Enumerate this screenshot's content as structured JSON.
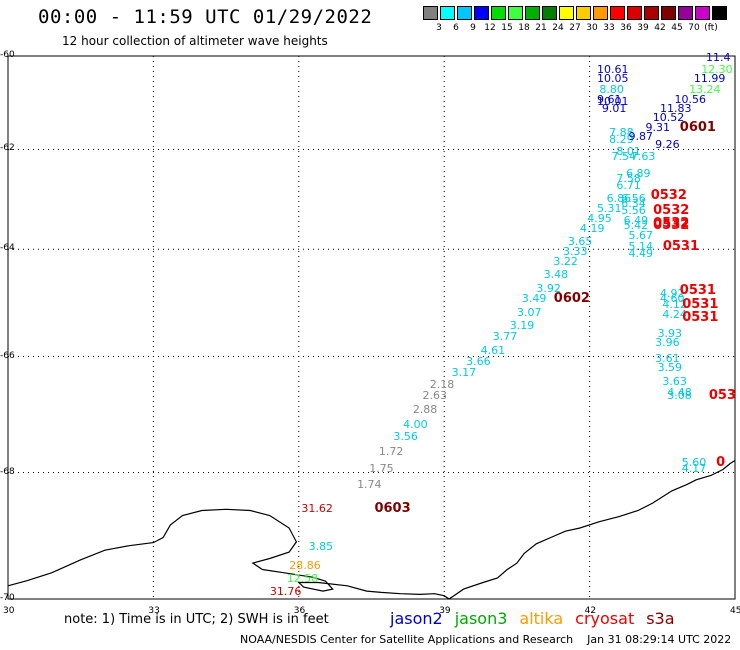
{
  "title": "00:00 - 11:59 UTC 01/29/2022",
  "subtitle": "12 hour collection of altimeter wave heights",
  "colorbar": {
    "colors": [
      "#808080",
      "#00ffff",
      "#00c8ff",
      "#0000ff",
      "#00e000",
      "#40ff40",
      "#00b000",
      "#008000",
      "#ffff00",
      "#ffcc00",
      "#ff9900",
      "#ff0000",
      "#dd0000",
      "#aa0000",
      "#800000",
      "#990099",
      "#cc00cc",
      "#000000"
    ],
    "labels": [
      "3",
      "6",
      "9",
      "12",
      "15",
      "18",
      "21",
      "24",
      "27",
      "30",
      "33",
      "36",
      "39",
      "42",
      "45",
      "70",
      "(ft)"
    ]
  },
  "axes": {
    "lat_labels": [
      "-60",
      "-62",
      "-64",
      "-66",
      "-68",
      "-70"
    ],
    "lon_labels": [
      "30",
      "33",
      "36",
      "39",
      "42",
      "45"
    ]
  },
  "map": {
    "lon_range": [
      30,
      45
    ],
    "lat_range": [
      -70,
      -60
    ],
    "lat_mercator": true
  },
  "observations": [
    {
      "text": "10.61",
      "lon": 42.4,
      "lat": -60.3,
      "color": "#0000cc"
    },
    {
      "text": "10.05",
      "lon": 42.4,
      "lat": -60.5,
      "color": "#0000cc"
    },
    {
      "text": "8.80",
      "lon": 42.45,
      "lat": -60.75,
      "color": "#00ccdd"
    },
    {
      "text": "9.61",
      "lon": 42.4,
      "lat": -60.95,
      "color": "#0000cc"
    },
    {
      "text": "10.01",
      "lon": 42.4,
      "lat": -61.0,
      "color": "#0000cc"
    },
    {
      "text": "9.01",
      "lon": 42.5,
      "lat": -61.15,
      "color": "#0000cc"
    },
    {
      "text": "7.88",
      "lon": 42.65,
      "lat": -61.65,
      "color": "#00ccdd"
    },
    {
      "text": "8.29",
      "lon": 42.65,
      "lat": -61.8,
      "color": "#00ccdd"
    },
    {
      "text": "9.26",
      "lon": 43.6,
      "lat": -61.9,
      "color": "#0000cc"
    },
    {
      "text": "8.01",
      "lon": 42.8,
      "lat": -62.05,
      "color": "#00ccdd"
    },
    {
      "text": "7.54",
      "lon": 42.7,
      "lat": -62.15,
      "color": "#00ccdd"
    },
    {
      "text": "7.63",
      "lon": 43.1,
      "lat": -62.15,
      "color": "#00ccdd"
    },
    {
      "text": "6.89",
      "lon": 43.0,
      "lat": -62.5,
      "color": "#00ccdd"
    },
    {
      "text": "7.58",
      "lon": 42.8,
      "lat": -62.6,
      "color": "#00ccdd"
    },
    {
      "text": "6.71",
      "lon": 42.8,
      "lat": -62.75,
      "color": "#00ccdd"
    },
    {
      "text": "6.86",
      "lon": 42.6,
      "lat": -63.0,
      "color": "#00ccdd"
    },
    {
      "text": "6.56",
      "lon": 42.9,
      "lat": -63.0,
      "color": "#00ccdd"
    },
    {
      "text": "5.31",
      "lon": 42.4,
      "lat": -63.2,
      "color": "#00ccdd"
    },
    {
      "text": "6.34",
      "lon": 42.9,
      "lat": -63.1,
      "color": "#00ccdd"
    },
    {
      "text": "5.56",
      "lon": 42.9,
      "lat": -63.25,
      "color": "#00ccdd"
    },
    {
      "text": "4.95",
      "lon": 42.2,
      "lat": -63.4,
      "color": "#00ccdd"
    },
    {
      "text": "6.49",
      "lon": 42.95,
      "lat": -63.45,
      "color": "#00ccdd"
    },
    {
      "text": "5.42",
      "lon": 42.95,
      "lat": -63.55,
      "color": "#00ccdd"
    },
    {
      "text": "4.19",
      "lon": 42.05,
      "lat": -63.6,
      "color": "#00ccdd"
    },
    {
      "text": "5.67",
      "lon": 43.05,
      "lat": -63.75,
      "color": "#00ccdd"
    },
    {
      "text": "3.65",
      "lon": 41.8,
      "lat": -63.85,
      "color": "#00ccdd"
    },
    {
      "text": "5.14",
      "lon": 43.05,
      "lat": -63.95,
      "color": "#00ccdd"
    },
    {
      "text": "3.33",
      "lon": 41.7,
      "lat": -64.05,
      "color": "#00ccdd"
    },
    {
      "text": "4.49",
      "lon": 43.05,
      "lat": -64.1,
      "color": "#00ccdd"
    },
    {
      "text": "3.22",
      "lon": 41.5,
      "lat": -64.25,
      "color": "#00ccdd"
    },
    {
      "text": "3.48",
      "lon": 41.3,
      "lat": -64.5,
      "color": "#00ccdd"
    },
    {
      "text": "3.92",
      "lon": 41.15,
      "lat": -64.75,
      "color": "#00ccdd"
    },
    {
      "text": "3.49",
      "lon": 40.85,
      "lat": -64.95,
      "color": "#00ccdd"
    },
    {
      "text": "4.92",
      "lon": 43.7,
      "lat": -64.85,
      "color": "#00ccdd"
    },
    {
      "text": "4.60",
      "lon": 43.7,
      "lat": -64.95,
      "color": "#00ccdd"
    },
    {
      "text": "4.12",
      "lon": 43.75,
      "lat": -65.05,
      "color": "#00ccdd"
    },
    {
      "text": "4.24",
      "lon": 43.75,
      "lat": -65.25,
      "color": "#00ccdd"
    },
    {
      "text": "3.07",
      "lon": 40.75,
      "lat": -65.2,
      "color": "#00ccdd"
    },
    {
      "text": "3.19",
      "lon": 40.6,
      "lat": -65.45,
      "color": "#00ccdd"
    },
    {
      "text": "3.93",
      "lon": 43.65,
      "lat": -65.6,
      "color": "#00ccdd"
    },
    {
      "text": "3.77",
      "lon": 40.25,
      "lat": -65.65,
      "color": "#00ccdd"
    },
    {
      "text": "3.96",
      "lon": 43.6,
      "lat": -65.75,
      "color": "#00ccdd"
    },
    {
      "text": "4.61",
      "lon": 40.0,
      "lat": -65.9,
      "color": "#00ccdd"
    },
    {
      "text": "3.66",
      "lon": 39.7,
      "lat": -66.1,
      "color": "#00ccdd"
    },
    {
      "text": "3.61",
      "lon": 43.6,
      "lat": -66.05,
      "color": "#00ccdd"
    },
    {
      "text": "3.59",
      "lon": 43.65,
      "lat": -66.2,
      "color": "#00ccdd"
    },
    {
      "text": "3.17",
      "lon": 39.4,
      "lat": -66.3,
      "color": "#00ccdd"
    },
    {
      "text": "2.18",
      "lon": 38.95,
      "lat": -66.5,
      "color": "#888888"
    },
    {
      "text": "3.63",
      "lon": 43.75,
      "lat": -66.45,
      "color": "#00ccdd"
    },
    {
      "text": "4.48",
      "lon": 43.85,
      "lat": -66.65,
      "color": "#00ccdd"
    },
    {
      "text": "3.08",
      "lon": 43.85,
      "lat": -66.7,
      "color": "#00ccdd"
    },
    {
      "text": "2.63",
      "lon": 38.8,
      "lat": -66.7,
      "color": "#888888"
    },
    {
      "text": "2.88",
      "lon": 38.6,
      "lat": -66.95,
      "color": "#888888"
    },
    {
      "text": "4.00",
      "lon": 38.4,
      "lat": -67.2,
      "color": "#00ccdd"
    },
    {
      "text": "3.56",
      "lon": 38.2,
      "lat": -67.4,
      "color": "#00ccdd"
    },
    {
      "text": "1.72",
      "lon": 37.9,
      "lat": -67.65,
      "color": "#888888"
    },
    {
      "text": "1.75",
      "lon": 37.7,
      "lat": -67.95,
      "color": "#888888"
    },
    {
      "text": "1.74",
      "lon": 37.45,
      "lat": -68.2,
      "color": "#888888"
    },
    {
      "text": "5.60",
      "lon": 44.15,
      "lat": -67.85,
      "color": "#00ccdd"
    },
    {
      "text": "4.17",
      "lon": 44.15,
      "lat": -67.95,
      "color": "#00ccdd"
    },
    {
      "text": "31.62",
      "lon": 36.3,
      "lat": -68.6,
      "color": "#cc0000"
    },
    {
      "text": "3.85",
      "lon": 36.45,
      "lat": -69.2,
      "color": "#00ccdd"
    },
    {
      "text": "28.86",
      "lon": 36.05,
      "lat": -69.5,
      "color": "#ff9900"
    },
    {
      "text": "12.58",
      "lon": 36.0,
      "lat": -69.7,
      "color": "#40ff40"
    },
    {
      "text": "31.76",
      "lon": 35.65,
      "lat": -69.9,
      "color": "#cc0000"
    },
    {
      "text": "11.4",
      "lon": 44.65,
      "lat": -60.05,
      "color": "#0000cc"
    },
    {
      "text": "12.30",
      "lon": 44.55,
      "lat": -60.3,
      "color": "#40ff40"
    },
    {
      "text": "11.99",
      "lon": 44.4,
      "lat": -60.5,
      "color": "#0000cc"
    },
    {
      "text": "13.24",
      "lon": 44.3,
      "lat": -60.75,
      "color": "#40ff40"
    },
    {
      "text": "10.56",
      "lon": 44.0,
      "lat": -60.95,
      "color": "#0000cc"
    },
    {
      "text": "11.83",
      "lon": 43.7,
      "lat": -61.15,
      "color": "#0000cc"
    },
    {
      "text": "10.52",
      "lon": 43.55,
      "lat": -61.35,
      "color": "#0000cc"
    },
    {
      "text": "9.31",
      "lon": 43.4,
      "lat": -61.55,
      "color": "#0000cc"
    },
    {
      "text": "9.87",
      "lon": 43.05,
      "lat": -61.75,
      "color": "#0000cc"
    }
  ],
  "time_labels": [
    {
      "text": "0601",
      "lon": 44.15,
      "lat": -61.55,
      "color": "#800000"
    },
    {
      "text": "0532",
      "lon": 43.55,
      "lat": -62.95,
      "color": "#ee0000"
    },
    {
      "text": "0532",
      "lon": 43.6,
      "lat": -63.25,
      "color": "#ee0000"
    },
    {
      "text": "0532",
      "lon": 43.6,
      "lat": -63.5,
      "color": "#ee0000"
    },
    {
      "text": "0532",
      "lon": 43.6,
      "lat": -63.55,
      "color": "#ee0000"
    },
    {
      "text": "0531",
      "lon": 43.8,
      "lat": -63.95,
      "color": "#ee0000"
    },
    {
      "text": "0602",
      "lon": 41.55,
      "lat": -64.95,
      "color": "#800000"
    },
    {
      "text": "0531",
      "lon": 44.15,
      "lat": -64.8,
      "color": "#ee0000"
    },
    {
      "text": "0531",
      "lon": 44.2,
      "lat": -65.05,
      "color": "#ee0000"
    },
    {
      "text": "0531",
      "lon": 44.2,
      "lat": -65.3,
      "color": "#ee0000"
    },
    {
      "text": "053",
      "lon": 44.75,
      "lat": -66.7,
      "color": "#ee0000"
    },
    {
      "text": "0",
      "lon": 44.9,
      "lat": -67.85,
      "color": "#ee0000"
    },
    {
      "text": "0603",
      "lon": 37.85,
      "lat": -68.6,
      "color": "#800000"
    }
  ],
  "coastline_lonlat": [
    [
      30.0,
      -69.8
    ],
    [
      30.4,
      -69.72
    ],
    [
      30.9,
      -69.6
    ],
    [
      31.5,
      -69.4
    ],
    [
      32.0,
      -69.25
    ],
    [
      32.5,
      -69.18
    ],
    [
      33.0,
      -69.13
    ],
    [
      33.2,
      -69.05
    ],
    [
      33.35,
      -68.85
    ],
    [
      33.6,
      -68.7
    ],
    [
      34.0,
      -68.62
    ],
    [
      34.5,
      -68.6
    ],
    [
      35.0,
      -68.62
    ],
    [
      35.4,
      -68.7
    ],
    [
      35.8,
      -68.9
    ],
    [
      35.95,
      -69.12
    ],
    [
      35.8,
      -69.28
    ],
    [
      35.4,
      -69.38
    ],
    [
      35.05,
      -69.45
    ],
    [
      35.25,
      -69.55
    ],
    [
      35.7,
      -69.6
    ],
    [
      36.3,
      -69.67
    ],
    [
      36.55,
      -69.73
    ],
    [
      36.7,
      -69.85
    ],
    [
      36.5,
      -69.88
    ],
    [
      36.1,
      -69.82
    ],
    [
      36.0,
      -69.75
    ],
    [
      36.4,
      -69.75
    ],
    [
      37.0,
      -69.8
    ],
    [
      37.4,
      -69.88
    ],
    [
      37.7,
      -69.9
    ],
    [
      38.1,
      -69.92
    ],
    [
      38.5,
      -69.93
    ],
    [
      38.8,
      -69.92
    ],
    [
      39.0,
      -69.95
    ],
    [
      39.1,
      -70.0
    ],
    [
      39.2,
      -69.95
    ],
    [
      39.4,
      -69.85
    ],
    [
      39.8,
      -69.75
    ],
    [
      40.1,
      -69.68
    ],
    [
      40.3,
      -69.55
    ],
    [
      40.5,
      -69.45
    ],
    [
      40.65,
      -69.3
    ],
    [
      40.9,
      -69.15
    ],
    [
      41.2,
      -69.05
    ],
    [
      41.5,
      -68.95
    ],
    [
      41.8,
      -68.9
    ],
    [
      42.2,
      -68.8
    ],
    [
      42.6,
      -68.72
    ],
    [
      43.0,
      -68.62
    ],
    [
      43.3,
      -68.5
    ],
    [
      43.7,
      -68.3
    ],
    [
      44.0,
      -68.2
    ],
    [
      44.2,
      -68.12
    ],
    [
      44.5,
      -68.05
    ],
    [
      44.75,
      -67.95
    ],
    [
      44.9,
      -67.85
    ],
    [
      45.0,
      -67.8
    ]
  ],
  "footer": {
    "note": "note: 1) Time is in UTC; 2) SWH is in feet",
    "satellites": [
      {
        "name": "jason2",
        "color": "#0000cc"
      },
      {
        "name": "jason3",
        "color": "#00aa00"
      },
      {
        "name": "altika",
        "color": "#ff9900"
      },
      {
        "name": "cryosat",
        "color": "#ee0000"
      },
      {
        "name": "s3a",
        "color": "#800000"
      }
    ],
    "credit": "NOAA/NESDIS Center for Satellite Applications and Research",
    "timestamp": "Jan 31 08:29:14 UTC 2022"
  }
}
